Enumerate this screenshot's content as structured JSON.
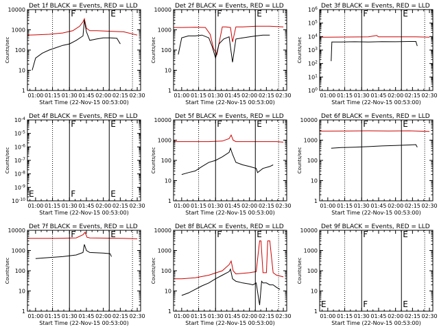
{
  "figure": {
    "xlabel": "Start Time (22-Nov-15 00:53:00)",
    "ylabel": "Counts/sec",
    "x_ticks": [
      "01:00",
      "01:15",
      "01:30",
      "01:45",
      "02:00",
      "02:15",
      "02:30"
    ],
    "colors": {
      "events": "#000000",
      "lld": "#cc0000",
      "axes": "#000000"
    },
    "markers": [
      {
        "label": "",
        "x": 1.25,
        "style": "dotted"
      },
      {
        "label": "F",
        "x": 1.5,
        "style": "solid"
      },
      {
        "label": "E",
        "x": 2.087,
        "style": "solid"
      },
      {
        "label": "",
        "x": 2.43,
        "style": "dotted"
      }
    ]
  },
  "chart_data": [
    {
      "type": "line",
      "title": "Det 1f BLACK = Events, RED = LLD",
      "xlim": [
        0.88,
        2.55
      ],
      "y_log": true,
      "ylim": [
        1,
        10000
      ],
      "y_tick_labels": [
        "1",
        "10",
        "100",
        "1000",
        "10000"
      ],
      "series": [
        {
          "color": "#cc0000",
          "x": [
            0.88,
            1.0,
            1.2,
            1.4,
            1.55,
            1.65,
            1.7,
            1.72,
            1.75,
            1.8,
            1.9,
            2.1,
            2.3,
            2.5
          ],
          "y": [
            550,
            560,
            600,
            700,
            900,
            1500,
            2500,
            3500,
            1200,
            900,
            900,
            850,
            800,
            550
          ]
        },
        {
          "color": "#000000",
          "x": [
            0.95,
            1.0,
            1.1,
            1.2,
            1.3,
            1.4,
            1.5,
            1.6,
            1.7,
            1.72,
            1.75,
            1.8,
            1.9,
            2.0,
            2.1,
            2.2,
            2.25
          ],
          "y": [
            10,
            40,
            70,
            100,
            130,
            170,
            200,
            300,
            500,
            3000,
            800,
            300,
            350,
            400,
            400,
            380,
            200
          ]
        }
      ]
    },
    {
      "type": "line",
      "title": "Det 2f BLACK = Events, RED = LLD",
      "xlim": [
        0.88,
        2.55
      ],
      "y_log": true,
      "ylim": [
        1,
        10000
      ],
      "y_tick_labels": [
        "1",
        "10",
        "100",
        "1000",
        "10000"
      ],
      "series": [
        {
          "color": "#cc0000",
          "x": [
            0.88,
            1.0,
            1.2,
            1.35,
            1.42,
            1.47,
            1.52,
            1.56,
            1.6,
            1.65,
            1.72,
            1.75,
            1.8,
            1.9,
            2.1,
            2.3,
            2.5
          ],
          "y": [
            1300,
            1300,
            1350,
            1300,
            600,
            120,
            60,
            300,
            1400,
            1400,
            1300,
            250,
            1400,
            1400,
            1500,
            1500,
            1400
          ]
        },
        {
          "color": "#000000",
          "x": [
            0.95,
            1.0,
            1.1,
            1.2,
            1.3,
            1.4,
            1.45,
            1.5,
            1.55,
            1.62,
            1.7,
            1.75,
            1.8,
            1.9,
            2.0,
            2.1,
            2.2,
            2.3
          ],
          "y": [
            60,
            400,
            500,
            500,
            550,
            400,
            150,
            40,
            200,
            350,
            450,
            25,
            350,
            400,
            450,
            500,
            550,
            550
          ]
        }
      ]
    },
    {
      "type": "line",
      "title": "Det 3f BLACK = Events, RED = LLD",
      "xlim": [
        0.88,
        2.55
      ],
      "y_log": true,
      "ylim": [
        1,
        1000000
      ],
      "y_tick_labels": [
        "10^0",
        "10^1",
        "10^2",
        "10^3",
        "10^4",
        "10^5",
        "10^6"
      ],
      "series": [
        {
          "color": "#cc0000",
          "x": [
            0.88,
            1.0,
            1.3,
            1.6,
            1.72,
            1.75,
            1.8,
            2.0,
            2.3,
            2.5
          ],
          "y": [
            9000,
            9000,
            9200,
            9500,
            12000,
            9500,
            9500,
            9500,
            9500,
            9000
          ]
        },
        {
          "color": "#000000",
          "x": [
            1.05,
            1.06,
            1.2,
            1.4,
            1.6,
            1.8,
            2.0,
            2.2,
            2.3,
            2.32
          ],
          "y": [
            150,
            4000,
            4000,
            4100,
            4000,
            4200,
            4100,
            4300,
            4300,
            2000
          ]
        }
      ]
    },
    {
      "type": "line",
      "title": "Det 4f BLACK = Events, RED = LLD",
      "xlim": [
        0.88,
        2.55
      ],
      "y_log": true,
      "ylim": [
        1e-10,
        0.0001
      ],
      "y_tick_labels": [
        "10^-10",
        "10^-9",
        "10^-8",
        "10^-7",
        "10^-6",
        "10^-5",
        "10^-4"
      ],
      "marker_labels": [
        "E",
        "F",
        "E"
      ],
      "series": []
    },
    {
      "type": "line",
      "title": "Det 5f BLACK = Events, RED = LLD",
      "xlim": [
        0.88,
        2.55
      ],
      "y_log": true,
      "ylim": [
        1,
        10000
      ],
      "y_tick_labels": [
        "1",
        "10",
        "100",
        "1000",
        "10000"
      ],
      "series": [
        {
          "color": "#cc0000",
          "x": [
            0.88,
            1.0,
            1.2,
            1.4,
            1.6,
            1.7,
            1.73,
            1.76,
            1.8,
            2.0,
            2.2,
            2.4,
            2.5
          ],
          "y": [
            850,
            850,
            850,
            850,
            900,
            1200,
            1800,
            1000,
            850,
            850,
            850,
            850,
            800
          ]
        },
        {
          "color": "#000000",
          "x": [
            1.0,
            1.1,
            1.2,
            1.3,
            1.4,
            1.5,
            1.6,
            1.7,
            1.72,
            1.75,
            1.8,
            1.9,
            2.0,
            2.1,
            2.12,
            2.2,
            2.3,
            2.35
          ],
          "y": [
            20,
            25,
            30,
            50,
            80,
            100,
            150,
            250,
            400,
            200,
            80,
            60,
            50,
            40,
            25,
            40,
            50,
            60
          ]
        }
      ]
    },
    {
      "type": "line",
      "title": "Det 6f BLACK = Events, RED = LLD",
      "xlim": [
        0.88,
        2.55
      ],
      "y_log": true,
      "ylim": [
        1,
        10000
      ],
      "y_tick_labels": [
        "1",
        "10",
        "100",
        "1000",
        "10000"
      ],
      "series": [
        {
          "color": "#cc0000",
          "x": [
            0.88,
            1.0,
            1.3,
            1.6,
            1.9,
            2.2,
            2.5
          ],
          "y": [
            2800,
            2800,
            2850,
            2900,
            2850,
            2900,
            2700
          ]
        },
        {
          "color": "#000000",
          "x": [
            1.05,
            1.2,
            1.4,
            1.6,
            1.8,
            2.0,
            2.2,
            2.3,
            2.32
          ],
          "y": [
            400,
            430,
            450,
            480,
            520,
            550,
            580,
            600,
            450
          ]
        }
      ]
    },
    {
      "type": "line",
      "title": "Det 7f BLACK = Events, RED = LLD",
      "xlim": [
        0.88,
        2.55
      ],
      "y_log": true,
      "ylim": [
        1,
        10000
      ],
      "y_tick_labels": [
        "1",
        "10",
        "100",
        "1000",
        "10000"
      ],
      "series": [
        {
          "color": "#cc0000",
          "x": [
            0.88,
            1.0,
            1.3,
            1.6,
            1.7,
            1.73,
            1.76,
            1.8,
            2.0,
            2.3,
            2.5
          ],
          "y": [
            4000,
            4000,
            4000,
            4200,
            6000,
            8000,
            4500,
            4200,
            4100,
            4000,
            3800
          ]
        },
        {
          "color": "#000000",
          "x": [
            1.0,
            1.2,
            1.4,
            1.6,
            1.7,
            1.72,
            1.75,
            1.8,
            2.0,
            2.1,
            2.12
          ],
          "y": [
            400,
            450,
            500,
            600,
            800,
            2000,
            1000,
            800,
            750,
            700,
            500
          ]
        }
      ]
    },
    {
      "type": "line",
      "title": "Det 8f BLACK = Events, RED = LLD",
      "xlim": [
        0.88,
        2.55
      ],
      "y_log": true,
      "ylim": [
        1,
        10000
      ],
      "y_tick_labels": [
        "1",
        "10",
        "100",
        "1000",
        "10000"
      ],
      "series": [
        {
          "color": "#cc0000",
          "x": [
            0.88,
            1.0,
            1.2,
            1.4,
            1.6,
            1.7,
            1.73,
            1.76,
            1.8,
            1.9,
            2.0,
            2.1,
            2.15,
            2.17,
            2.2,
            2.25,
            2.27,
            2.3,
            2.35,
            2.4,
            2.5
          ],
          "y": [
            40,
            40,
            45,
            60,
            100,
            200,
            300,
            100,
            70,
            75,
            80,
            90,
            3000,
            3000,
            80,
            80,
            3000,
            3000,
            80,
            60,
            50
          ]
        },
        {
          "color": "#000000",
          "x": [
            1.0,
            1.1,
            1.2,
            1.3,
            1.4,
            1.5,
            1.6,
            1.7,
            1.72,
            1.75,
            1.8,
            1.9,
            2.0,
            2.05,
            2.1,
            2.15,
            2.18,
            2.2,
            2.25,
            2.3,
            2.35,
            2.4,
            2.45
          ],
          "y": [
            6,
            8,
            12,
            18,
            25,
            40,
            60,
            90,
            120,
            40,
            30,
            25,
            22,
            20,
            25,
            2,
            30,
            25,
            25,
            20,
            20,
            15,
            12
          ]
        }
      ]
    },
    {
      "type": "line",
      "title": "Det 9f BLACK = Events, RED = LLD",
      "xlim": [
        0.88,
        2.55
      ],
      "y_log": true,
      "ylim": [
        1,
        10000
      ],
      "y_tick_labels": [
        "1",
        "10",
        "100",
        "1000",
        "10000"
      ],
      "marker_labels": [
        "E",
        "F",
        "E"
      ],
      "series": []
    }
  ]
}
